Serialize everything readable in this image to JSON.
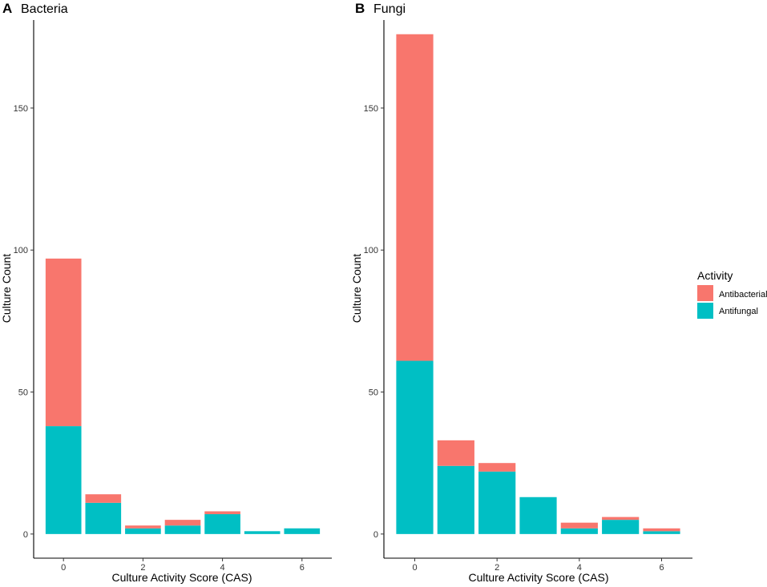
{
  "colors": {
    "Antibacterial": "#F8766D",
    "Antifungal": "#00BFC4",
    "axis": "#000000",
    "tick_text": "#4D4D4D"
  },
  "legend": {
    "title": "Activity",
    "items": [
      "Antibacterial",
      "Antifungal"
    ]
  },
  "chart_data": [
    {
      "type": "bar",
      "stacked": true,
      "panel_letter": "A",
      "title": "Bacteria",
      "xlabel": "Culture Activity Score (CAS)",
      "ylabel": "Culture Count",
      "categories": [
        0,
        1,
        2,
        3,
        4,
        5,
        6
      ],
      "x_ticks": [
        0,
        2,
        4,
        6
      ],
      "y_ticks": [
        0,
        50,
        100,
        150
      ],
      "xlim": [
        -0.75,
        6.75
      ],
      "ylim": [
        -8.5,
        181
      ],
      "series": [
        {
          "name": "Antifungal",
          "values": [
            38,
            11,
            2,
            3,
            7,
            1,
            2
          ]
        },
        {
          "name": "Antibacterial",
          "values": [
            59,
            3,
            1,
            2,
            1,
            0,
            0
          ]
        }
      ]
    },
    {
      "type": "bar",
      "stacked": true,
      "panel_letter": "B",
      "title": "Fungi",
      "xlabel": "Culture Activity Score (CAS)",
      "ylabel": "Culture Count",
      "categories": [
        0,
        1,
        2,
        3,
        4,
        5,
        6
      ],
      "x_ticks": [
        0,
        2,
        4,
        6
      ],
      "y_ticks": [
        0,
        50,
        100,
        150
      ],
      "xlim": [
        -0.75,
        6.75
      ],
      "ylim": [
        -8.5,
        181
      ],
      "series": [
        {
          "name": "Antifungal",
          "values": [
            61,
            24,
            22,
            13,
            2,
            5,
            1
          ]
        },
        {
          "name": "Antibacterial",
          "values": [
            115,
            9,
            3,
            0,
            2,
            1,
            1
          ]
        }
      ]
    }
  ]
}
